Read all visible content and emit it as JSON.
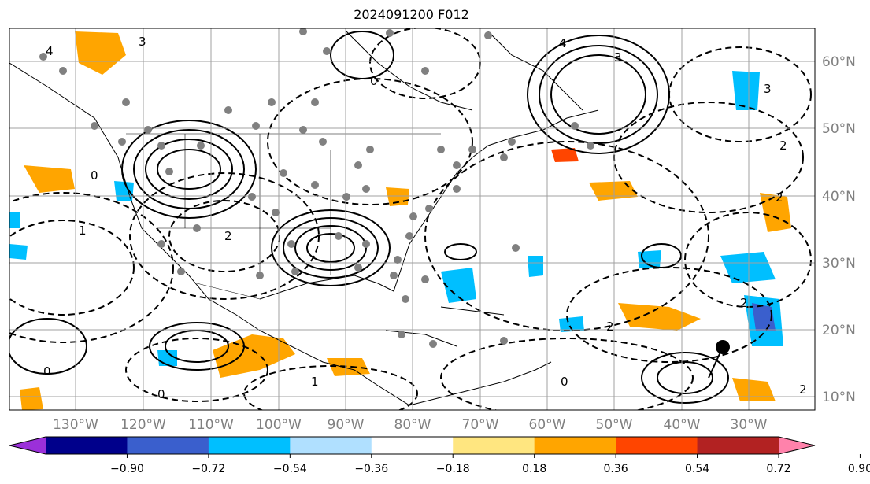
{
  "title": "2024091200 F012",
  "lon_labels": [
    "130°W",
    "120°W",
    "110°W",
    "100°W",
    "90°W",
    "80°W",
    "70°W",
    "60°W",
    "50°W",
    "40°W",
    "30°W"
  ],
  "lat_labels": [
    "60°N",
    "50°N",
    "40°N",
    "30°N",
    "20°N",
    "10°N"
  ],
  "colorbar": {
    "tick_labels": [
      "−0.90",
      "−0.72",
      "−0.54",
      "−0.36",
      "−0.18",
      "0.18",
      "0.36",
      "0.54",
      "0.72",
      "0.90"
    ],
    "colors": [
      "#9b30d9",
      "#00008b",
      "#3a5fcd",
      "#00bfff",
      "#b0e0ff",
      "#ffffff",
      "#ffe680",
      "#ffa500",
      "#ff4500",
      "#b22222",
      "#ff82ab"
    ]
  },
  "contour_labels": [
    "4",
    "3",
    "0",
    "1",
    "0",
    "4",
    "3",
    "2",
    "1",
    "0",
    "2",
    "0",
    "2",
    "3",
    "2",
    "0",
    "2",
    "2"
  ],
  "colors": {
    "land_outline": "#000000",
    "grid": "#a0a0a0",
    "station": "#808080",
    "marker": "#000000"
  }
}
